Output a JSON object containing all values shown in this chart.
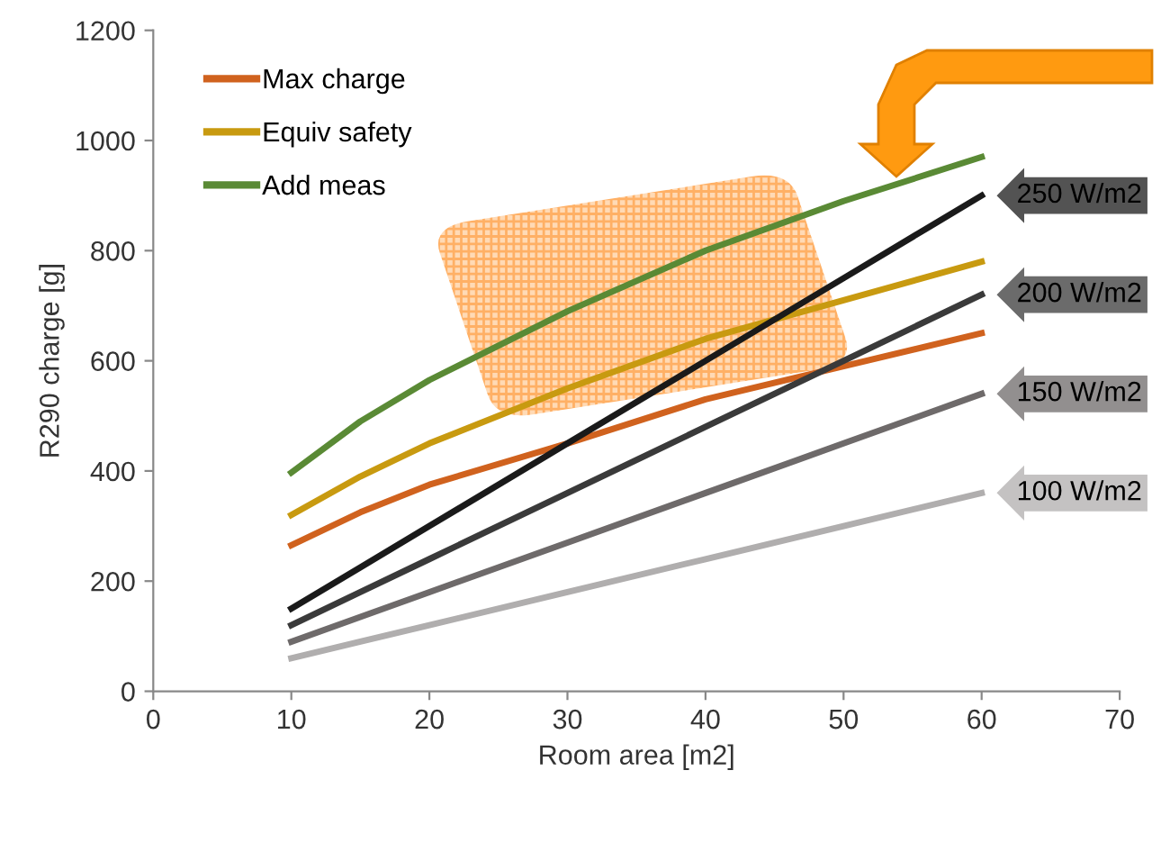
{
  "chart_data": {
    "type": "line",
    "xlabel": "Room area [m2]",
    "ylabel": "R290 charge [g]",
    "x": [
      10,
      15,
      20,
      30,
      40,
      50,
      60
    ],
    "xlim": [
      0,
      70
    ],
    "xticks": [
      0,
      10,
      20,
      30,
      40,
      50,
      60,
      70
    ],
    "ylim": [
      0,
      1200
    ],
    "yticks": [
      0,
      200,
      400,
      600,
      800,
      1000,
      1200
    ],
    "grid": false,
    "legend": "top left",
    "marker": "none",
    "line_style": "solid",
    "series": [
      {
        "name": "Max charge",
        "color": "#d0621e",
        "values": [
          265,
          325,
          375,
          450,
          530,
          590,
          650
        ]
      },
      {
        "name": "Equiv safety",
        "color": "#c89a10",
        "values": [
          320,
          390,
          450,
          550,
          640,
          710,
          780
        ]
      },
      {
        "name": "Add meas",
        "color": "#5a8a35",
        "values": [
          397,
          490,
          565,
          690,
          800,
          890,
          970
        ]
      },
      {
        "color": "#1a1a1a",
        "values": [
          150,
          225,
          300,
          450,
          600,
          750,
          900
        ]
      },
      {
        "color": "#3a3a3a",
        "values": [
          120,
          180,
          240,
          360,
          480,
          600,
          720
        ]
      },
      {
        "color": "#6e6a6a",
        "values": [
          90,
          135,
          180,
          270,
          360,
          450,
          540
        ]
      },
      {
        "color": "#b0aeae",
        "values": [
          60,
          90,
          120,
          180,
          240,
          300,
          360
        ]
      }
    ],
    "annotations": [
      "250 W/m2",
      "200 W/m2",
      "150 W/m2",
      "100 W/m2"
    ]
  }
}
